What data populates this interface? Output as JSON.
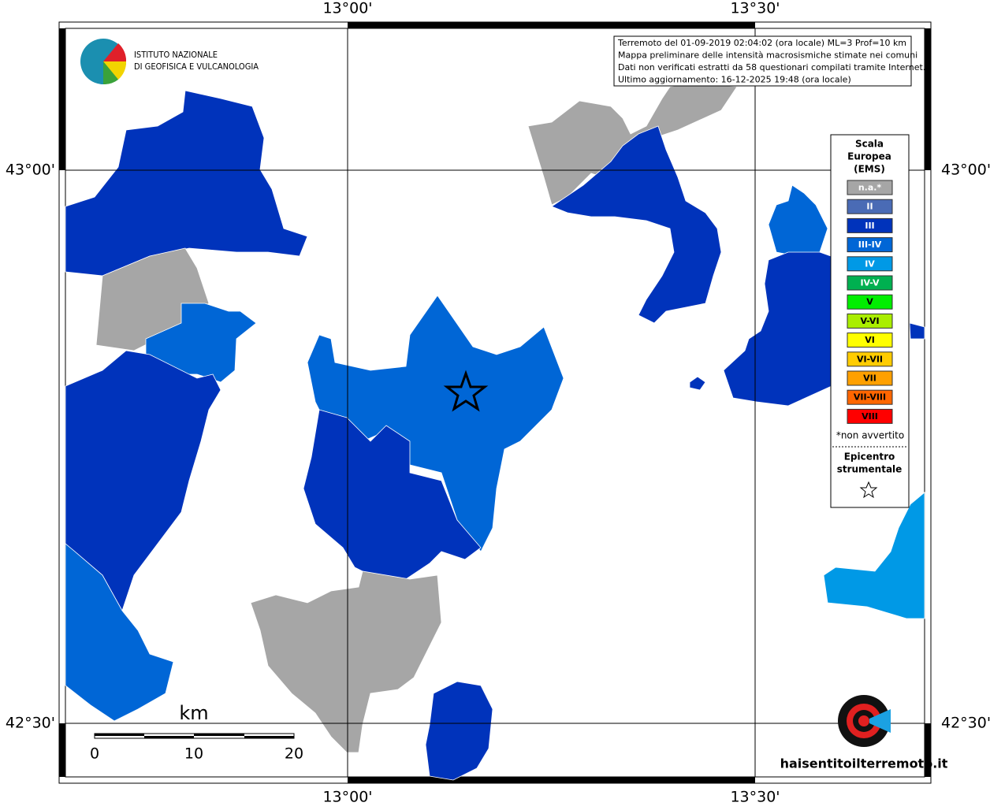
{
  "map": {
    "lon_labels": [
      "13°00'",
      "13°30'"
    ],
    "lat_labels": [
      "43°00'",
      "42°30'"
    ],
    "logo": [
      "ISTITUTO NAZIONALE",
      "DI GEOFISICA E VULCANOLOGIA"
    ],
    "info": [
      "Terremoto del 01-09-2019 02:04:02 (ora locale) ML=3 Prof=10 km",
      "Mappa preliminare delle intensità macrosismiche stimate nei comuni",
      "Dati non verificati estratti da 58 questionari compilati tramite Internet.",
      "Ultimo aggiornamento: 16-12-2025 19:48 (ora locale)"
    ],
    "legend": {
      "title": [
        "Scala",
        "Europea",
        "(EMS)"
      ],
      "items": [
        {
          "label": "n.a.*",
          "color": "#a6a6a6"
        },
        {
          "label": "II",
          "color": "#4a6bb5"
        },
        {
          "label": "III",
          "color": "#0033bb"
        },
        {
          "label": "III-IV",
          "color": "#0066d6"
        },
        {
          "label": "IV",
          "color": "#0099e6"
        },
        {
          "label": "IV-V",
          "color": "#00b050"
        },
        {
          "label": "V",
          "color": "#00ee00"
        },
        {
          "label": "V-VI",
          "color": "#aaee00"
        },
        {
          "label": "VI",
          "color": "#ffff00"
        },
        {
          "label": "VI-VII",
          "color": "#ffcc00"
        },
        {
          "label": "VII",
          "color": "#ffa000"
        },
        {
          "label": "VII-VIII",
          "color": "#ff6600"
        },
        {
          "label": "VIII",
          "color": "#ff0000"
        }
      ],
      "note": "*non avvertito",
      "epicenter": [
        "Epicentro",
        "strumentale"
      ]
    },
    "scale": {
      "unit": "km",
      "ticks": [
        "0",
        "10",
        "20"
      ]
    },
    "site": "haisentitoilterremoto.it"
  }
}
